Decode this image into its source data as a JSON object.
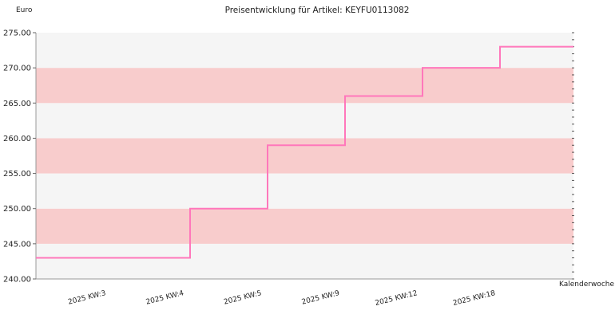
{
  "chart_data": {
    "type": "line",
    "title": "Preisentwicklung für Artikel: KEYFU0113082",
    "ylabel": "Euro",
    "xlabel": "Kalenderwoche",
    "categories": [
      "2025 KW:3",
      "2025 KW:4",
      "2025 KW:5",
      "2025 KW:9",
      "2025 KW:12",
      "2025 KW:18"
    ],
    "series": [
      {
        "values": [
          243.0,
          250.0,
          259.0,
          266.0,
          270.0,
          273.0
        ]
      }
    ],
    "ylim": [
      240,
      275
    ],
    "yticks": [
      "240.00",
      "245.00",
      "250.00",
      "255.00",
      "260.00",
      "265.00",
      "270.00",
      "275.00"
    ],
    "step": true,
    "grid": true,
    "colors": {
      "line": "#ff77bb",
      "band_odd": "#f8cccc",
      "band_even": "#f5f5f5",
      "axis": "#999999"
    }
  }
}
